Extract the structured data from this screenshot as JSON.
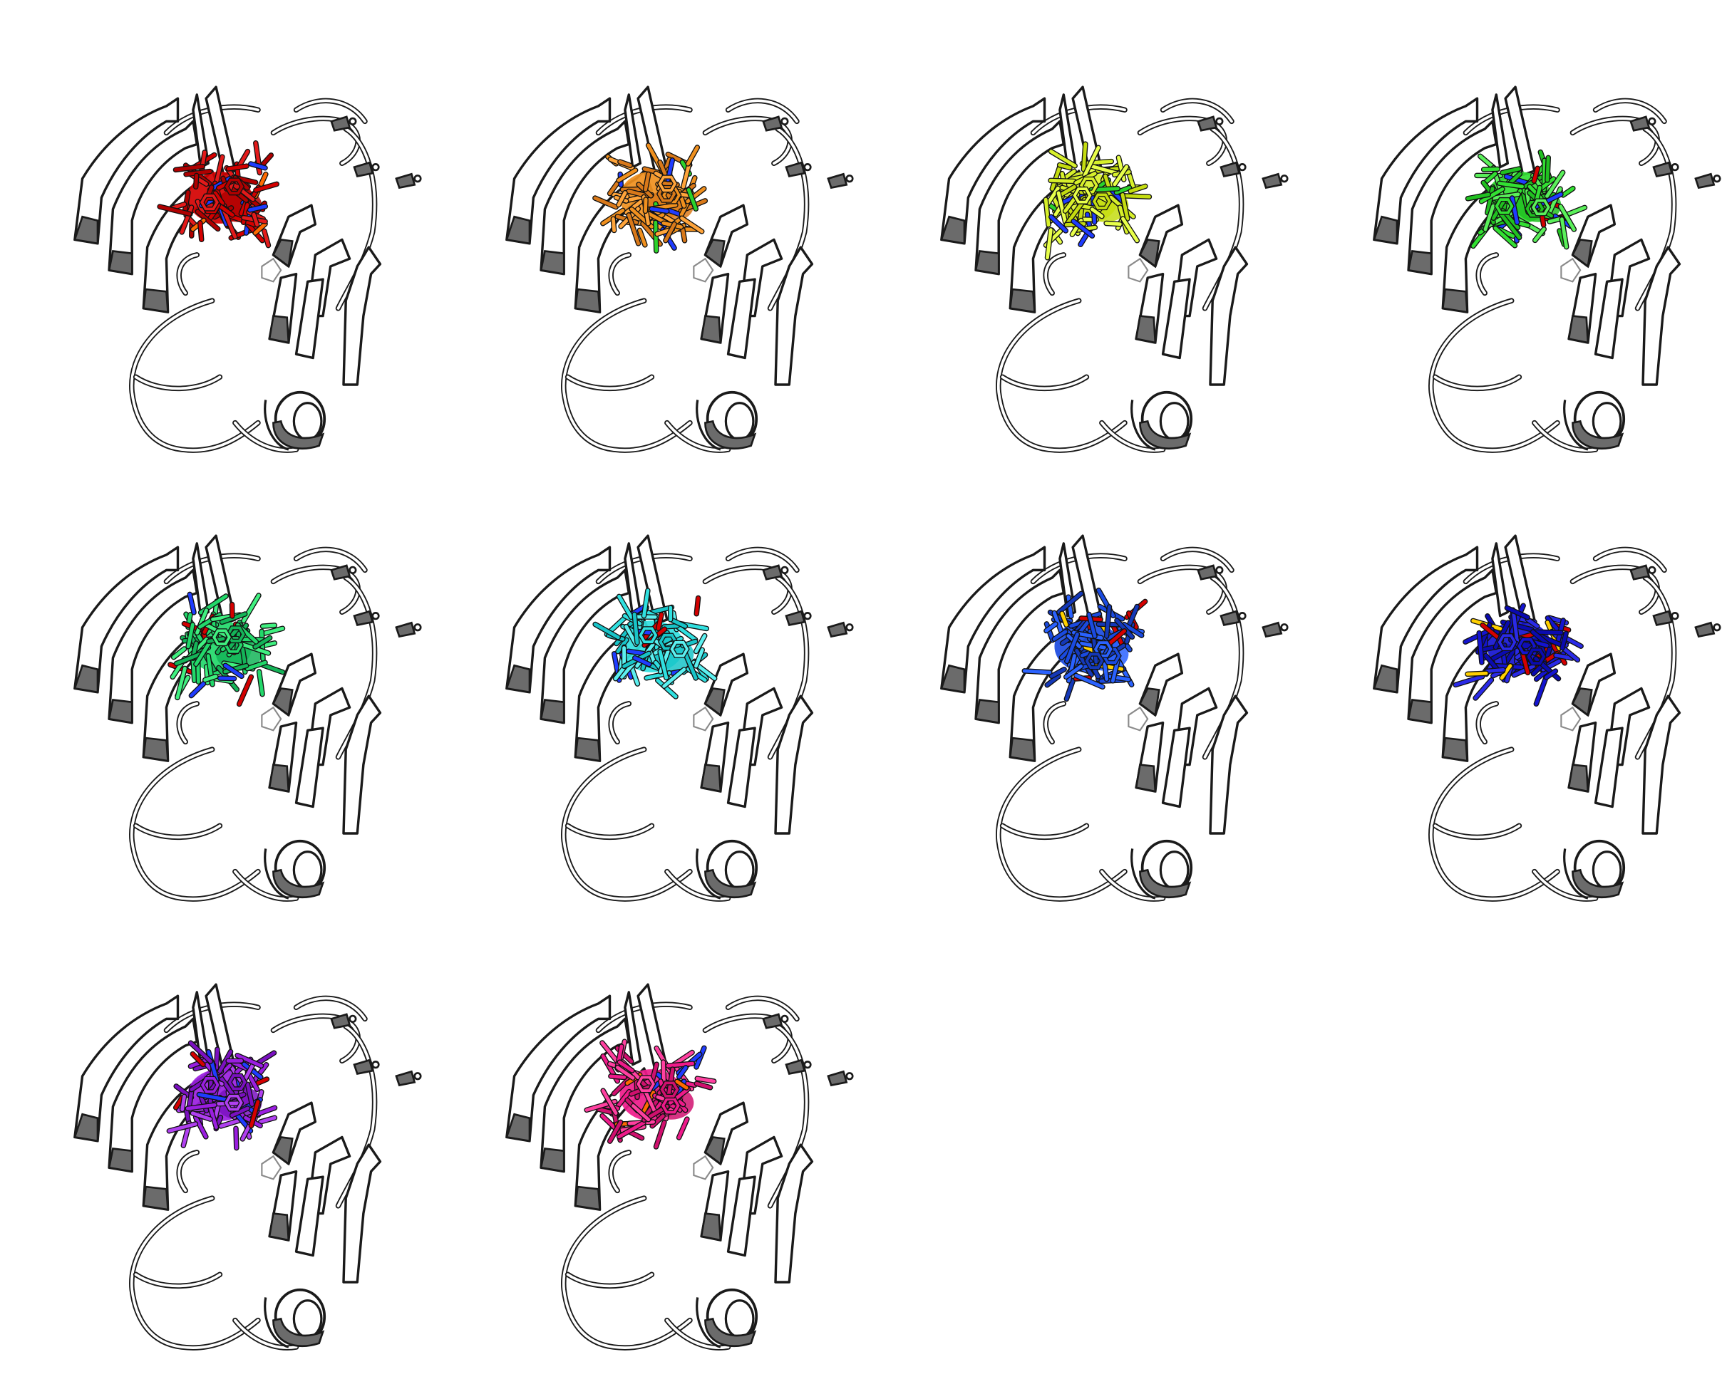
{
  "figure": {
    "background": "#ffffff",
    "protein_style": {
      "fill": "#ffffff",
      "stroke": "#1a1a1a",
      "shade": "#6b6b6b",
      "loop": "#8a8a8a"
    },
    "panels": [
      {
        "id": 1,
        "ligand_colors": [
          "#d40000",
          "#b00000",
          "#e31a1a"
        ],
        "accent_colors": [
          "#1f3cff",
          "#ff6a00"
        ]
      },
      {
        "id": 2,
        "ligand_colors": [
          "#f0901e",
          "#d9791a",
          "#ffa43a"
        ],
        "accent_colors": [
          "#1f3cff",
          "#2bd22b"
        ]
      },
      {
        "id": 3,
        "ligand_colors": [
          "#d7f02a",
          "#c4dc10",
          "#e8ff4a"
        ],
        "accent_colors": [
          "#1f3cff",
          "#2bd22b"
        ]
      },
      {
        "id": 4,
        "ligand_colors": [
          "#32e032",
          "#20c020",
          "#5af05a"
        ],
        "accent_colors": [
          "#1f3cff",
          "#d40000"
        ]
      },
      {
        "id": 5,
        "ligand_colors": [
          "#22d86a",
          "#14b458",
          "#40f080"
        ],
        "accent_colors": [
          "#d40000",
          "#1f3cff"
        ]
      },
      {
        "id": 6,
        "ligand_colors": [
          "#30e0e0",
          "#18c4c8",
          "#5cf0f0"
        ],
        "accent_colors": [
          "#1f3cff",
          "#d40000"
        ]
      },
      {
        "id": 7,
        "ligand_colors": [
          "#1a4ae0",
          "#2a62ff",
          "#1438b8"
        ],
        "accent_colors": [
          "#d40000",
          "#ffd000"
        ]
      },
      {
        "id": 8,
        "ligand_colors": [
          "#1414d0",
          "#0a0ab0",
          "#2a2ae8"
        ],
        "accent_colors": [
          "#d40000",
          "#ffd000"
        ]
      },
      {
        "id": 9,
        "ligand_colors": [
          "#9a1ee0",
          "#7a10c0",
          "#b040f0"
        ],
        "accent_colors": [
          "#1f3cff",
          "#d40000"
        ]
      },
      {
        "id": 10,
        "ligand_colors": [
          "#ee1a8a",
          "#d0106e",
          "#ff40a0"
        ],
        "accent_colors": [
          "#1f3cff",
          "#ff6a00"
        ]
      }
    ]
  }
}
